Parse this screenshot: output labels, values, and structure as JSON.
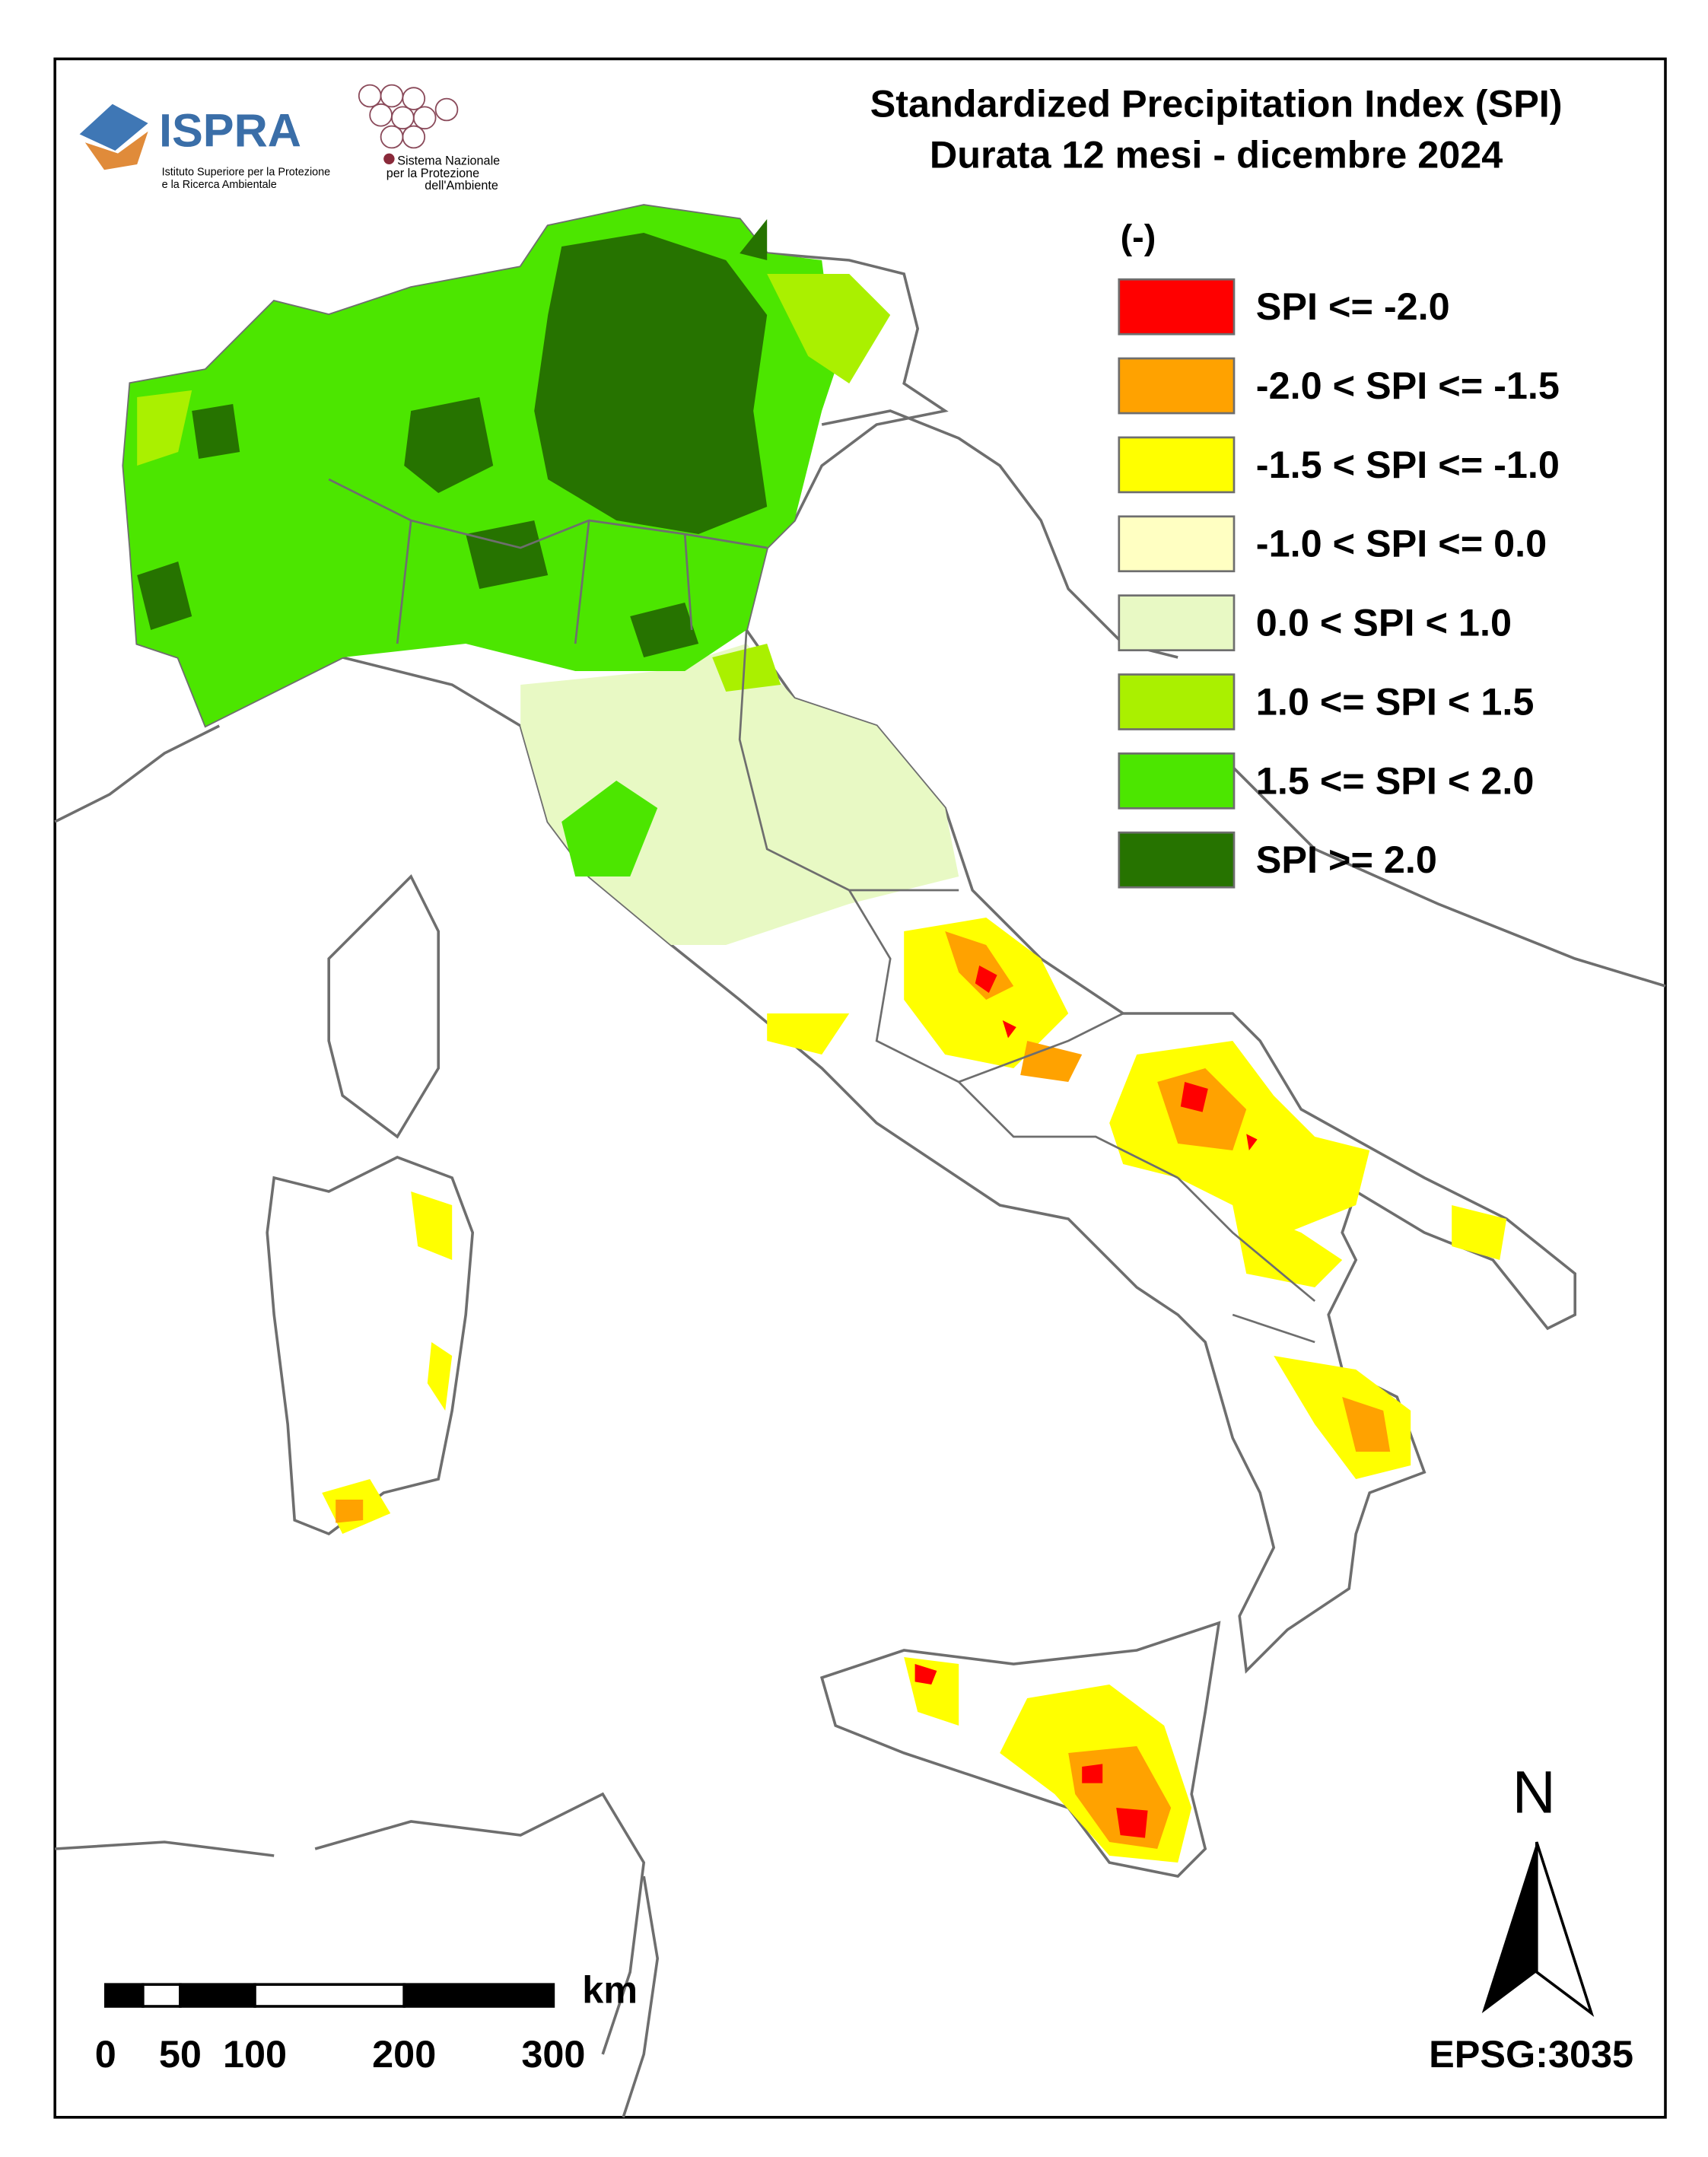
{
  "header": {
    "title_lines": [
      "Standardized Precipitation  Index (SPI)",
      "Durata 12 mesi - dicembre 2024"
    ]
  },
  "logos": {
    "ispra": "ISPRA",
    "ispra_lines": [
      "Istituto Superiore per la Protezione",
      "e la Ricerca Ambientale"
    ],
    "snpa_lines": [
      "Sistema Nazionale",
      "per la Protezione",
      "dell'Ambiente"
    ]
  },
  "legend": {
    "unit": "(-)",
    "items": [
      {
        "label": "SPI <= -2.0",
        "color": "#ff0000"
      },
      {
        "label": "-2.0 < SPI <= -1.5",
        "color": "#ffa200"
      },
      {
        "label": "-1.5 < SPI <= -1.0",
        "color": "#ffff00"
      },
      {
        "label": "-1.0 < SPI <= 0.0",
        "color": "#ffffc2"
      },
      {
        "label": "0.0 < SPI < 1.0",
        "color": "#e8f9c4"
      },
      {
        "label": "1.0 <= SPI < 1.5",
        "color": "#aaf000"
      },
      {
        "label": "1.5 <= SPI < 2.0",
        "color": "#4ce600"
      },
      {
        "label": "SPI >= 2.0",
        "color": "#267300"
      }
    ]
  },
  "scale_bar": {
    "unit": "km",
    "labels": [
      0,
      50,
      100,
      200,
      300
    ]
  },
  "north": "N",
  "projection": "EPSG:3035"
}
